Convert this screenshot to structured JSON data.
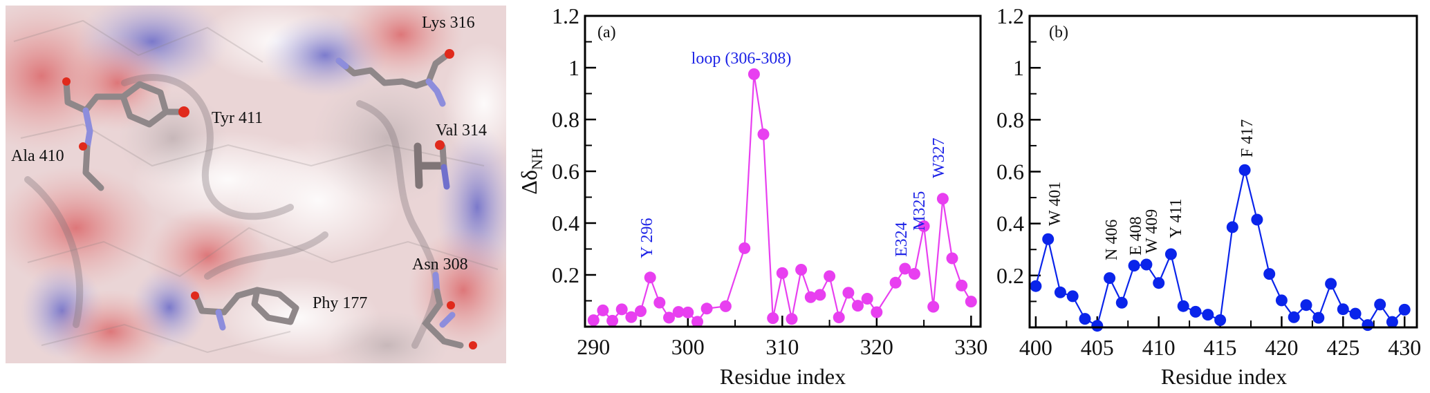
{
  "figure": {
    "structure_panel": {
      "labels": [
        {
          "id": "lys316",
          "text": "Lys 316"
        },
        {
          "id": "tyr411",
          "text": "Tyr 411"
        },
        {
          "id": "val314",
          "text": "Val 314"
        },
        {
          "id": "ala410",
          "text": "Ala 410"
        },
        {
          "id": "asn308",
          "text": "Asn 308"
        },
        {
          "id": "phy177",
          "text": "Phy 177"
        }
      ]
    }
  },
  "colors": {
    "series_a": "#e83ff0",
    "series_b": "#0a24ea",
    "annotation_a": "#1c22e6",
    "annotation_b": "#111111",
    "axis": "#000000"
  },
  "chart_data": [
    {
      "type": "line",
      "panel_label": "(a)",
      "title": "",
      "xlabel": "Residue index",
      "ylabel_main": "Δδ",
      "ylabel_sub": "NH",
      "xlim": [
        289.1,
        331.0
      ],
      "ylim": [
        0,
        1.2
      ],
      "xticks": [
        290,
        300,
        310,
        320,
        330
      ],
      "xtick_labels": [
        "290",
        "300",
        "310",
        "320",
        "330"
      ],
      "xminor": [
        295,
        305,
        315,
        325
      ],
      "yticks": [
        0.2,
        0.4,
        0.6,
        0.8,
        1,
        1.2
      ],
      "ytick_labels": [
        "0.2",
        "0.4",
        "0.6",
        "0.8",
        "1",
        "1.2"
      ],
      "yminor": [
        0.1,
        0.3,
        0.5,
        0.7,
        0.9,
        1.1
      ],
      "grid": false,
      "marker": "circle",
      "series": [
        {
          "name": "panel a",
          "x": [
            290,
            291,
            292,
            293,
            294,
            295,
            296,
            297,
            298,
            299,
            300,
            301,
            302,
            304,
            306,
            307,
            308,
            309,
            310,
            311,
            312,
            313,
            314,
            315,
            316,
            317,
            318,
            319,
            320,
            322,
            323,
            324,
            325,
            326,
            327,
            328,
            329,
            330
          ],
          "y": [
            0.025,
            0.063,
            0.023,
            0.067,
            0.037,
            0.06,
            0.19,
            0.093,
            0.035,
            0.057,
            0.055,
            0.019,
            0.07,
            0.079,
            0.303,
            0.975,
            0.743,
            0.033,
            0.207,
            0.03,
            0.22,
            0.114,
            0.123,
            0.195,
            0.036,
            0.131,
            0.081,
            0.108,
            0.056,
            0.17,
            0.224,
            0.204,
            0.388,
            0.077,
            0.494,
            0.264,
            0.159,
            0.097
          ]
        }
      ],
      "annotations": [
        {
          "text": "loop (306-308)",
          "x": 307,
          "y": 0.975,
          "orientation": "horizontal"
        },
        {
          "text": "Y 296",
          "x": 296,
          "y": 0.19,
          "orientation": "vertical"
        },
        {
          "text": "E324",
          "x": 323.2,
          "y": 0.224,
          "orientation": "vertical"
        },
        {
          "text": "M325",
          "x": 325.0,
          "y": 0.388,
          "orientation": "vertical"
        },
        {
          "text": "W327",
          "x": 327.0,
          "y": 0.494,
          "orientation": "vertical"
        }
      ]
    },
    {
      "type": "line",
      "panel_label": "(b)",
      "title": "",
      "xlabel": "Residue index",
      "xlim": [
        399.5,
        431.0
      ],
      "ylim": [
        0,
        1.2
      ],
      "xticks": [
        400,
        405,
        410,
        415,
        420,
        425,
        430
      ],
      "xtick_labels": [
        "400",
        "405",
        "410",
        "415",
        "420",
        "425",
        "430"
      ],
      "xminor": [
        402.5,
        407.5,
        412.5,
        417.5,
        422.5,
        427.5
      ],
      "yticks": [
        0.2,
        0.4,
        0.6,
        0.8,
        1,
        1.2
      ],
      "ytick_labels": [
        "0.2",
        "0.4",
        "0.6",
        "0.8",
        "1",
        "1.2"
      ],
      "yminor": [
        0.1,
        0.3,
        0.5,
        0.7,
        0.9,
        1.1
      ],
      "grid": false,
      "marker": "circle",
      "series": [
        {
          "name": "panel b",
          "x": [
            400,
            401,
            402,
            403,
            404,
            405,
            406,
            407,
            408,
            409,
            410,
            411,
            412,
            413,
            414,
            415,
            416,
            417,
            418,
            419,
            420,
            421,
            422,
            423,
            424,
            425,
            426,
            427,
            428,
            429,
            430
          ],
          "y": [
            0.159,
            0.34,
            0.135,
            0.12,
            0.033,
            0.006,
            0.19,
            0.095,
            0.238,
            0.242,
            0.171,
            0.282,
            0.082,
            0.06,
            0.049,
            0.028,
            0.386,
            0.606,
            0.415,
            0.206,
            0.104,
            0.039,
            0.086,
            0.037,
            0.168,
            0.07,
            0.053,
            0.009,
            0.088,
            0.021,
            0.068
          ]
        }
      ],
      "annotations": [
        {
          "text": "W 401",
          "x": 401,
          "y": 0.34,
          "orientation": "vertical"
        },
        {
          "text": "N 406",
          "x": 406,
          "y": 0.27,
          "orientation": "vertical"
        },
        {
          "text": "E 408",
          "x": 408,
          "y": 0.28,
          "orientation": "vertical"
        },
        {
          "text": "W 409",
          "x": 409.3,
          "y": 0.29,
          "orientation": "vertical"
        },
        {
          "text": "Y 411",
          "x": 411.3,
          "y": 0.35,
          "orientation": "vertical"
        },
        {
          "text": "F 417",
          "x": 417,
          "y": 0.606,
          "orientation": "vertical"
        }
      ]
    }
  ]
}
